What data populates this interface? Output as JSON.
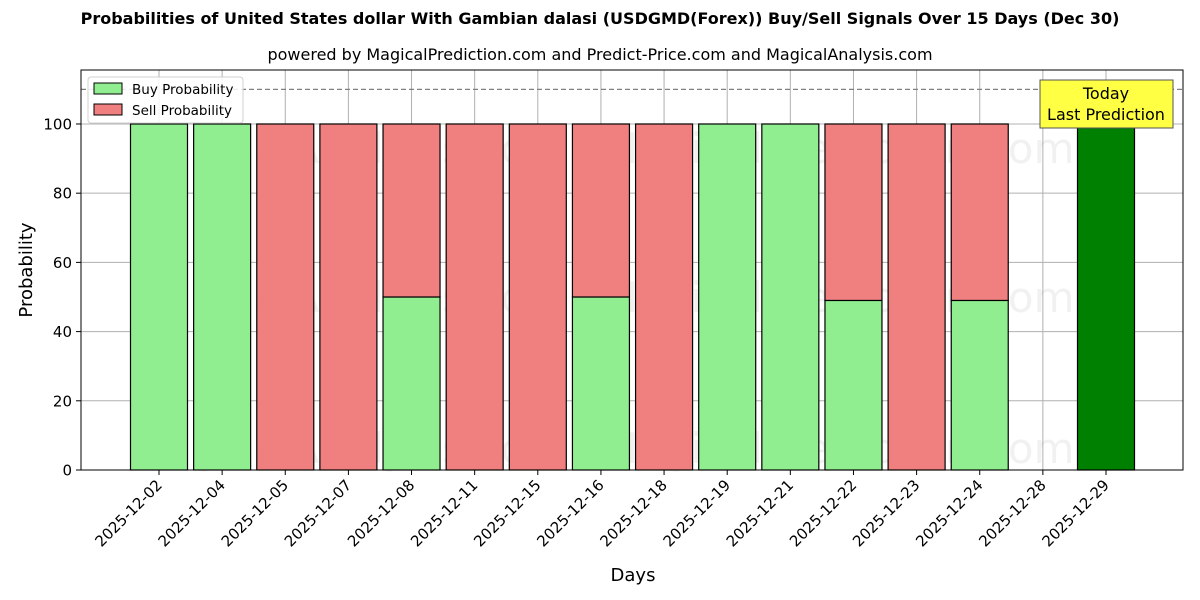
{
  "header": {
    "title": "Probabilities of United States dollar With Gambian dalasi (USDGMD(Forex)) Buy/Sell Signals Over 15 Days (Dec 30)",
    "subtitle": "powered by MagicalPrediction.com and Predict-Price.com and MagicalAnalysis.com"
  },
  "legend": {
    "items": [
      {
        "label": "Buy Probability",
        "color": "#90ee90"
      },
      {
        "label": "Sell Probability",
        "color": "#f08080"
      }
    ]
  },
  "annotation": {
    "line1": "Today",
    "line2": "Last Prediction",
    "bg_color": "#ffff44"
  },
  "watermarks": [
    "MagicalAnalysis.com",
    "MagicalPrediction.com"
  ],
  "colors": {
    "buy": "#90ee90",
    "sell": "#f08080",
    "today": "#008000",
    "grid": "#b0b0b0",
    "dashed_line": "#808080"
  },
  "chart_data": {
    "type": "bar",
    "stacked": true,
    "title": "Probabilities of United States dollar With Gambian dalasi (USDGMD(Forex)) Buy/Sell Signals Over 15 Days (Dec 30)",
    "subtitle": "powered by MagicalPrediction.com and Predict-Price.com and MagicalAnalysis.com",
    "xlabel": "Days",
    "ylabel": "Probability",
    "ylim": [
      0,
      115.6
    ],
    "yticks": [
      0,
      20,
      40,
      60,
      80,
      100
    ],
    "grid": true,
    "legend_position": "upper left",
    "reference_line": {
      "y": 110,
      "style": "dashed"
    },
    "categories": [
      "2025-12-02",
      "2025-12-04",
      "2025-12-05",
      "2025-12-07",
      "2025-12-08",
      "2025-12-11",
      "2025-12-15",
      "2025-12-16",
      "2025-12-18",
      "2025-12-19",
      "2025-12-21",
      "2025-12-22",
      "2025-12-23",
      "2025-12-24",
      "2025-12-28",
      "2025-12-29"
    ],
    "series": [
      {
        "name": "Buy Probability",
        "values": [
          100,
          100,
          0,
          0,
          50,
          0,
          0,
          50,
          0,
          100,
          100,
          49,
          0,
          49,
          0,
          0
        ]
      },
      {
        "name": "Sell Probability",
        "values": [
          0,
          0,
          100,
          100,
          50,
          100,
          100,
          50,
          100,
          0,
          0,
          51,
          100,
          51,
          0,
          0
        ]
      },
      {
        "name": "Today (Last Prediction)",
        "values": [
          0,
          0,
          0,
          0,
          0,
          0,
          0,
          0,
          0,
          0,
          0,
          0,
          0,
          0,
          0,
          100
        ]
      }
    ]
  }
}
